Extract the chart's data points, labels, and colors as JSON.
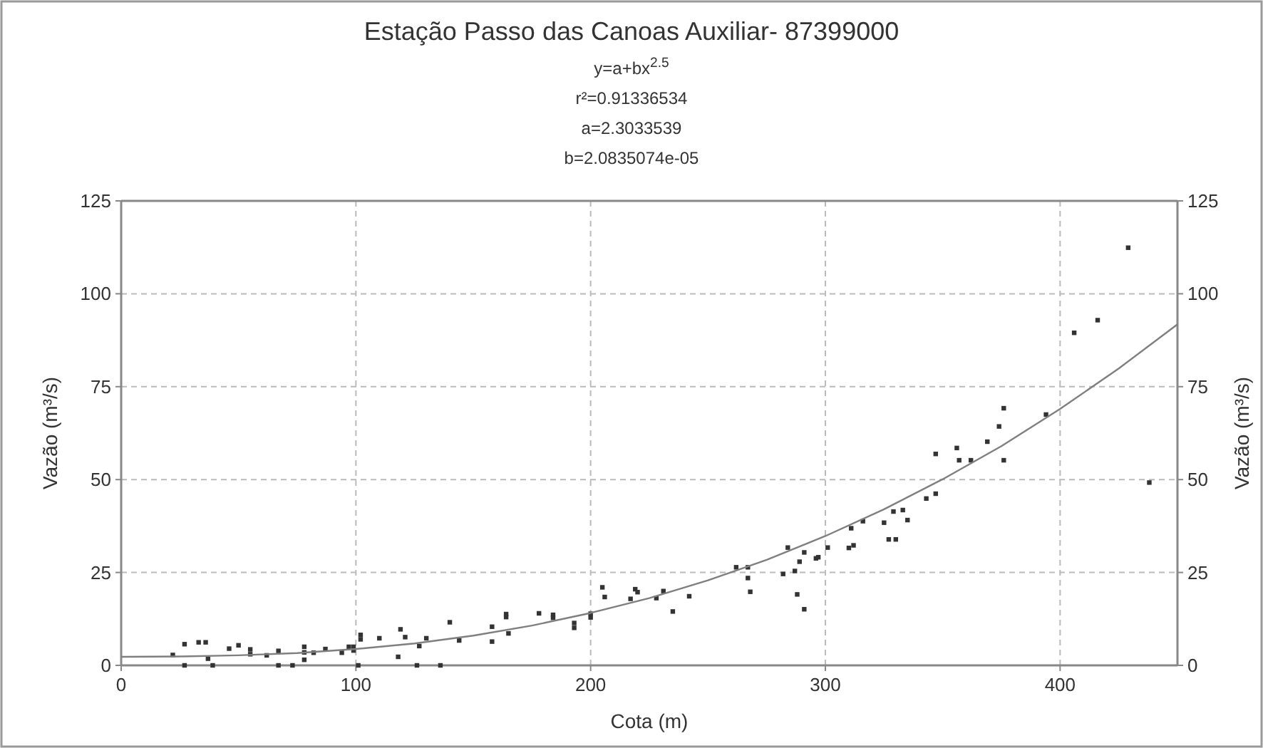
{
  "chart_data": {
    "type": "scatter",
    "title": "Estação Passo das Canoas Auxiliar- 87399000",
    "annotations": [
      "y=a+bx$^{2.5}$",
      "r²=0.91336534",
      "a=2.3033539",
      "b=2.0835074e-05"
    ],
    "xlabel": "Cota (m)",
    "ylabel": "Vazão (m³/s)",
    "y2label": "Vazão (m³/s)",
    "xlim": [
      0,
      450
    ],
    "xticks": [
      0,
      100,
      200,
      300,
      400
    ],
    "ylim": [
      0,
      125
    ],
    "yticks": [
      0,
      25,
      50,
      75,
      100,
      125
    ],
    "y2lim": [
      0,
      125
    ],
    "y2ticks": [
      0,
      25,
      50,
      75,
      100,
      125
    ],
    "grid": true,
    "series": [
      {
        "color": "#333333",
        "marker": "square",
        "x": [
          22,
          27,
          27,
          33,
          36,
          37,
          39,
          46,
          50,
          55,
          55,
          62,
          67,
          67,
          73,
          78,
          78,
          78,
          82,
          87,
          94,
          97,
          99,
          99,
          101,
          102,
          102,
          110,
          118,
          119,
          121,
          126,
          127,
          130,
          136,
          140,
          144,
          158,
          158,
          164,
          164,
          165,
          178,
          184,
          184,
          193,
          193,
          200,
          200,
          205,
          206,
          217,
          219,
          220,
          228,
          231,
          235,
          242,
          262,
          267,
          267,
          268,
          282,
          284,
          287,
          288,
          289,
          291,
          291,
          296,
          297,
          301,
          310,
          311,
          312,
          316,
          325,
          327,
          329,
          330,
          333,
          335,
          343,
          347,
          347,
          356,
          357,
          362,
          369,
          374,
          376,
          376,
          394,
          406,
          416,
          429,
          438
        ],
        "values": [
          2.8,
          5.7,
          0,
          6.2,
          6.2,
          1.8,
          0,
          4.5,
          5.4,
          4.3,
          3,
          2.7,
          3.9,
          0,
          0,
          5,
          3.5,
          1.5,
          3.4,
          4.4,
          3.4,
          5,
          5,
          4,
          0,
          8.2,
          7,
          7.3,
          2.3,
          9.7,
          7.6,
          0,
          5.2,
          7.3,
          0,
          11.6,
          6.7,
          6.4,
          10.4,
          13.8,
          13,
          8.6,
          14,
          13.6,
          12.8,
          11.4,
          10.1,
          13.9,
          12.9,
          21,
          18.4,
          17.9,
          20.5,
          19.7,
          18.1,
          20,
          14.5,
          18.6,
          26.4,
          26.4,
          23.5,
          19.8,
          24.6,
          31.7,
          25.4,
          19.1,
          27.9,
          30.4,
          15.1,
          28.8,
          29.1,
          31.7,
          31.6,
          36.9,
          32.3,
          38.8,
          38.4,
          33.9,
          41.4,
          33.9,
          41.8,
          39.1,
          44.9,
          46.2,
          56.9,
          58.5,
          55.2,
          55.2,
          60.2,
          64.3,
          69.2,
          55.2,
          67.5,
          89.5,
          92.9,
          112.4,
          49.2
        ]
      },
      {
        "type": "line",
        "color": "#7f7f7f",
        "line_style": "solid",
        "marker": "none",
        "x": [
          0,
          25,
          50,
          75,
          100,
          125,
          150,
          175,
          200,
          225,
          250,
          275,
          300,
          325,
          350,
          375,
          400,
          425,
          450
        ],
        "values": [
          2.3,
          2.4,
          2.7,
          3.3,
          4.4,
          5.9,
          8,
          10.7,
          14.1,
          18.1,
          22.9,
          28.4,
          34.8,
          42,
          50.1,
          59,
          69,
          79.9,
          91.8
        ]
      }
    ]
  }
}
